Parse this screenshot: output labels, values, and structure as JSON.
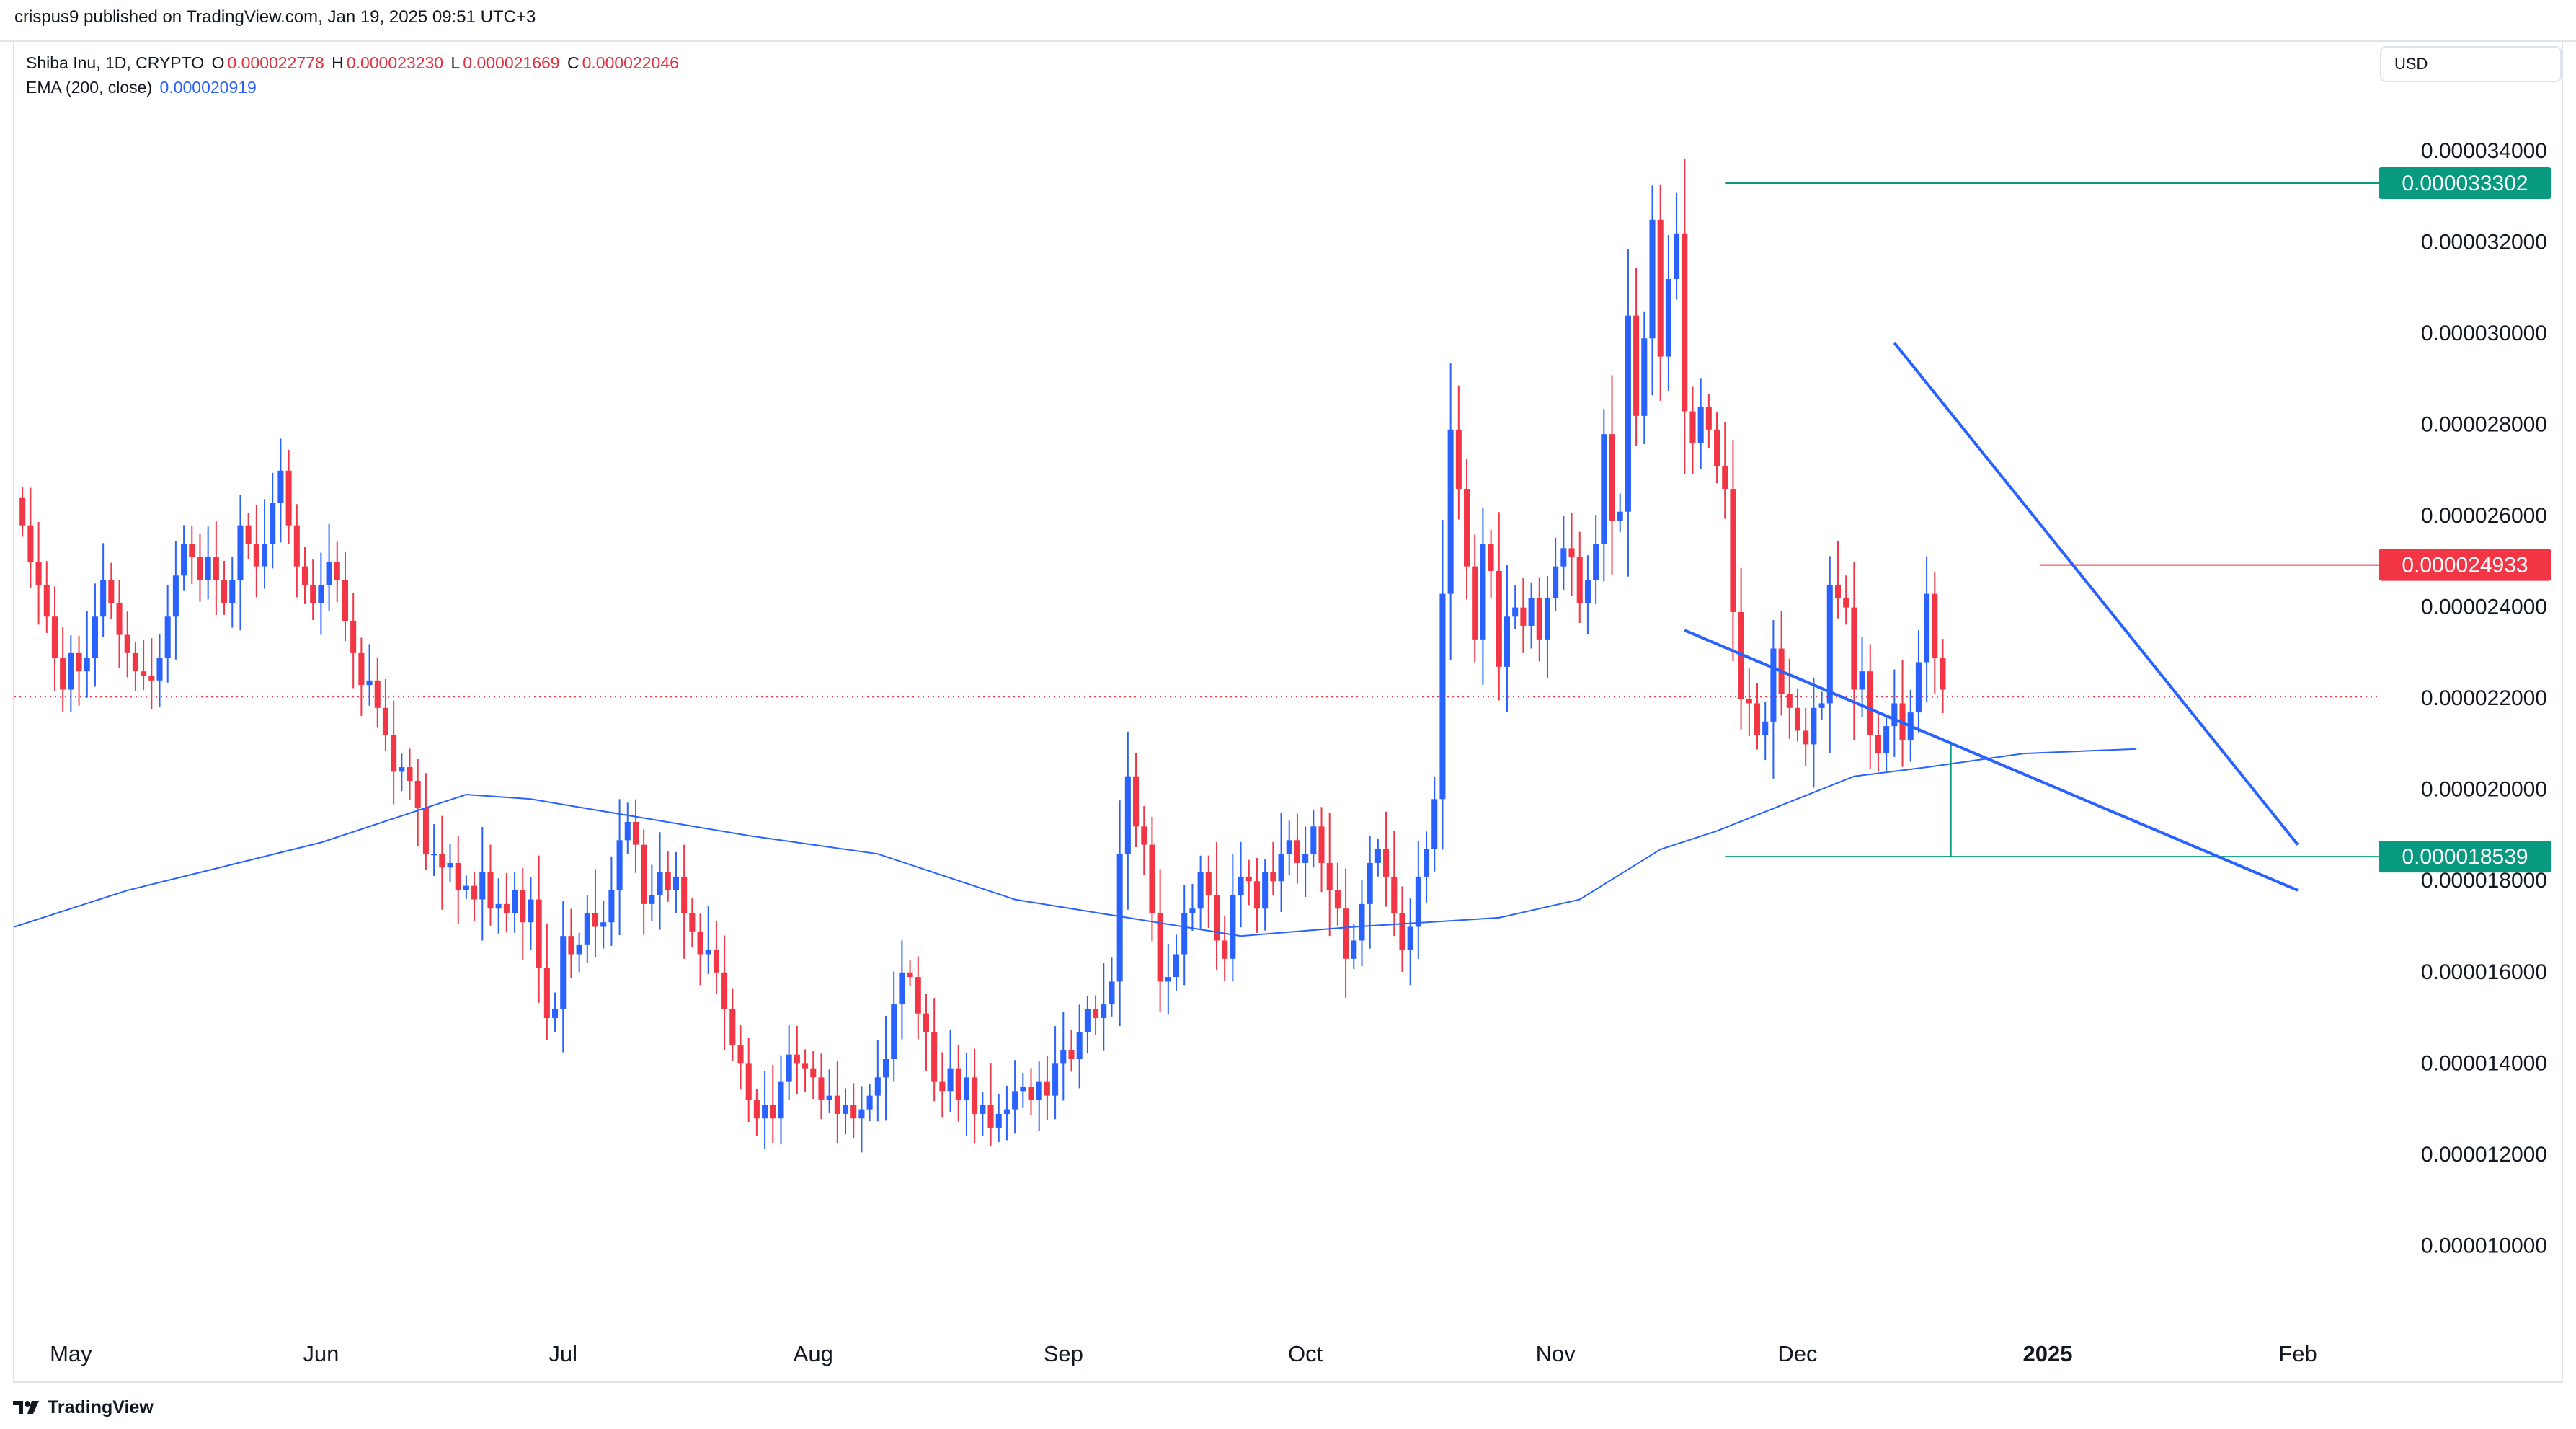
{
  "header": {
    "published": "crispus9 published on TradingView.com, Jan 19, 2025 09:51 UTC+3"
  },
  "legend": {
    "symbol": "Shiba Inu, 1D, CRYPTO",
    "open_label": "O",
    "open": "0.000022778",
    "high_label": "H",
    "high": "0.000023230",
    "low_label": "L",
    "low": "0.000021669",
    "close_label": "C",
    "close": "0.000022046",
    "ema_label": "EMA (200, close)",
    "ema_value": "0.000020919"
  },
  "currency_button": "USD",
  "footer": {
    "brand": "TradingView",
    "logo_icon": "tradingview-logo-icon"
  },
  "colors": {
    "up": "#2962ff",
    "down": "#f23645",
    "ema": "#2962ff",
    "support": "#089981",
    "resistance": "#f23645",
    "trendline": "#2962ff"
  },
  "chart_data": {
    "type": "candlestick",
    "title": "Shiba Inu, 1D, CRYPTO",
    "ylim": [
      8.3e-06,
      3.64e-05
    ],
    "y_ticks": [
      "0.000034000",
      "0.000032000",
      "0.000030000",
      "0.000028000",
      "0.000026000",
      "0.000024000",
      "0.000022000",
      "0.000020000",
      "0.000018000",
      "0.000016000",
      "0.000014000",
      "0.000012000",
      "0.000010000"
    ],
    "x_ticks": [
      {
        "label": "May",
        "date": "2024-05-01"
      },
      {
        "label": "Jun",
        "date": "2024-06-01"
      },
      {
        "label": "Jul",
        "date": "2024-07-01"
      },
      {
        "label": "Aug",
        "date": "2024-08-01"
      },
      {
        "label": "Sep",
        "date": "2024-09-01"
      },
      {
        "label": "Oct",
        "date": "2024-10-01"
      },
      {
        "label": "Nov",
        "date": "2024-11-01"
      },
      {
        "label": "Dec",
        "date": "2024-12-01"
      },
      {
        "label": "2025",
        "date": "2025-01-01",
        "bold": true
      },
      {
        "label": "Feb",
        "date": "2025-02-01"
      }
    ],
    "x_range": [
      "2024-04-24",
      "2025-02-11"
    ],
    "close_series": {
      "start_date": "2024-04-25",
      "values": [
        25.8,
        25.0,
        24.5,
        23.8,
        22.9,
        22.2,
        23.0,
        22.6,
        22.9,
        23.8,
        24.6,
        24.1,
        23.4,
        23.0,
        22.6,
        22.5,
        22.4,
        22.9,
        23.8,
        24.7,
        25.4,
        25.1,
        24.6,
        25.1,
        24.6,
        24.1,
        24.6,
        25.8,
        25.4,
        24.9,
        25.4,
        26.3,
        27.0,
        25.8,
        24.9,
        24.5,
        24.1,
        24.5,
        25.0,
        24.6,
        23.7,
        23.0,
        22.3,
        22.4,
        21.8,
        21.2,
        20.4,
        20.5,
        20.2,
        19.6,
        18.6,
        18.6,
        18.3,
        18.4,
        17.8,
        17.9,
        17.6,
        18.2,
        17.4,
        17.5,
        17.3,
        17.8,
        17.1,
        17.6,
        16.1,
        15.0,
        15.2,
        16.8,
        16.4,
        16.6,
        17.3,
        17.0,
        17.1,
        17.8,
        18.9,
        19.3,
        18.8,
        17.5,
        17.7,
        18.2,
        17.8,
        18.1,
        17.3,
        16.9,
        16.4,
        16.5,
        16.0,
        15.2,
        14.4,
        14.0,
        13.2,
        12.8,
        13.1,
        12.8,
        13.6,
        14.2,
        14.0,
        13.9,
        13.7,
        13.2,
        13.3,
        12.9,
        13.1,
        12.8,
        13.0,
        13.3,
        13.7,
        14.1,
        15.3,
        16.0,
        15.9,
        15.1,
        14.7,
        13.6,
        13.4,
        13.9,
        13.2,
        13.7,
        12.9,
        13.1,
        12.6,
        12.9,
        13.0,
        13.4,
        13.5,
        13.2,
        13.6,
        13.3,
        14.0,
        14.3,
        14.1,
        14.7,
        15.2,
        15.0,
        15.3,
        15.8,
        18.6,
        20.3,
        19.2,
        18.8,
        17.3,
        15.8,
        15.9,
        16.4,
        17.3,
        17.4,
        18.2,
        17.7,
        16.7,
        16.3,
        17.7,
        18.1,
        18.0,
        17.4,
        18.2,
        18.0,
        18.6,
        18.9,
        18.4,
        18.6,
        19.2,
        18.4,
        17.8,
        17.4,
        16.3,
        16.7,
        17.5,
        18.4,
        18.7,
        18.1,
        17.3,
        16.5,
        17.0,
        18.1,
        18.7,
        19.8,
        24.3,
        27.9,
        26.6,
        24.9,
        23.3,
        25.4,
        24.8,
        22.7,
        23.8,
        24.0,
        23.6,
        24.2,
        23.3,
        24.2,
        24.9,
        25.3,
        25.1,
        24.1,
        24.6,
        25.4,
        27.8,
        25.9,
        26.1,
        30.4,
        28.2,
        29.9,
        32.5,
        29.5,
        31.2,
        32.2,
        28.3,
        27.6,
        28.4,
        27.9,
        27.1,
        26.6,
        23.9,
        22.0,
        21.9,
        21.2,
        21.5,
        23.1,
        22.1,
        21.8,
        21.3,
        21.0,
        21.8,
        21.9,
        24.5,
        24.2,
        24.0,
        22.2,
        22.6,
        21.2,
        20.8,
        21.4,
        21.9,
        21.1,
        21.7,
        22.8,
        24.3,
        22.9,
        22.2
      ]
    },
    "ema_200": {
      "start_date": "2024-04-24",
      "values": [
        [
          0,
          17.0
        ],
        [
          14,
          17.8
        ],
        [
          38,
          18.85
        ],
        [
          56,
          19.9
        ],
        [
          64,
          19.8
        ],
        [
          91,
          19.0
        ],
        [
          107,
          18.6
        ],
        [
          124,
          17.6
        ],
        [
          138,
          17.2
        ],
        [
          152,
          16.8
        ],
        [
          166,
          17.0
        ],
        [
          184,
          17.2
        ],
        [
          194,
          17.6
        ],
        [
          204,
          18.7
        ],
        [
          211,
          19.1
        ],
        [
          228,
          20.3
        ],
        [
          237,
          20.5
        ],
        [
          249,
          20.8
        ],
        [
          263,
          20.9
        ]
      ]
    },
    "last_price": 22.046,
    "price_labels": [
      {
        "value": "0.000033302",
        "kind": "support"
      },
      {
        "value": "0.000024933",
        "kind": "resistance"
      },
      {
        "value": "0.000018539",
        "kind": "support"
      }
    ],
    "horizontal_levels": [
      {
        "value": 33.302,
        "from": "2024-11-22",
        "kind": "support"
      },
      {
        "value": 24.933,
        "from": "2024-12-31",
        "kind": "resistance"
      },
      {
        "value": 18.539,
        "from": "2024-11-22",
        "kind": "support"
      }
    ],
    "trendlines": [
      {
        "from": {
          "date": "2024-12-13",
          "value": 29.8
        },
        "to": {
          "date": "2025-02-01",
          "value": 18.8
        }
      },
      {
        "from": {
          "date": "2024-11-17",
          "value": 23.5
        },
        "to": {
          "date": "2025-02-01",
          "value": 17.8
        }
      }
    ],
    "vertical_marker": {
      "date": "2024-12-20",
      "from_value": 18.539,
      "to_value": 21.0
    }
  }
}
